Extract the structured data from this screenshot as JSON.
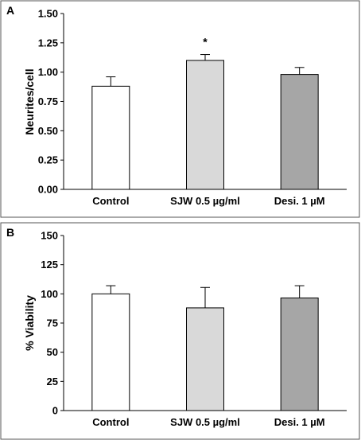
{
  "chart_data": [
    {
      "panel_label": "A",
      "type": "bar",
      "ylabel": "Neurites/cell",
      "ylim": [
        0,
        1.5
      ],
      "yticks": [
        "0.00",
        "0.25",
        "0.50",
        "0.75",
        "1.00",
        "1.25",
        "1.50"
      ],
      "categories": [
        "Control",
        "SJW 0.5 µg/ml",
        "Desi. 1 µM"
      ],
      "values": [
        0.88,
        1.1,
        0.98
      ],
      "errors": [
        0.08,
        0.05,
        0.06
      ],
      "bar_colors": [
        "#ffffff",
        "#d9d9d9",
        "#a6a6a6"
      ],
      "annotations": [
        "",
        "*",
        ""
      ],
      "grid": false
    },
    {
      "panel_label": "B",
      "type": "bar",
      "ylabel": "% Viability",
      "ylim": [
        0,
        150
      ],
      "yticks": [
        "0",
        "25",
        "50",
        "75",
        "100",
        "125",
        "150"
      ],
      "categories": [
        "Control",
        "SJW 0.5 µg/ml",
        "Desi. 1 µM"
      ],
      "values": [
        100,
        88,
        96.5
      ],
      "errors": [
        7,
        17.5,
        10.5
      ],
      "bar_colors": [
        "#ffffff",
        "#d9d9d9",
        "#a6a6a6"
      ],
      "annotations": [
        "",
        "",
        ""
      ],
      "grid": false
    }
  ]
}
